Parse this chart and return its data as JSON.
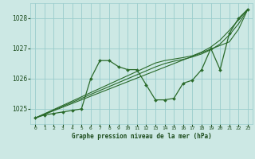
{
  "xlabel": "Graphe pression niveau de la mer (hPa)",
  "ylabel": "",
  "bg_color": "#cce8e4",
  "grid_color": "#99cccc",
  "line_color": "#2a6a2a",
  "text_color": "#1a4a1a",
  "hours": [
    0,
    1,
    2,
    3,
    4,
    5,
    6,
    7,
    8,
    9,
    10,
    11,
    12,
    13,
    14,
    15,
    16,
    17,
    18,
    19,
    20,
    21,
    22,
    23
  ],
  "pressure_main": [
    1024.7,
    1024.8,
    1024.85,
    1024.9,
    1024.95,
    1025.0,
    1026.0,
    1026.6,
    1026.6,
    1026.4,
    1026.3,
    1026.3,
    1025.8,
    1025.3,
    1025.3,
    1025.35,
    1025.85,
    1025.95,
    1026.3,
    1027.0,
    1026.3,
    1027.5,
    1028.0,
    1028.3
  ],
  "trend1": [
    1024.7,
    1024.82,
    1024.94,
    1025.06,
    1025.18,
    1025.3,
    1025.42,
    1025.54,
    1025.66,
    1025.78,
    1025.9,
    1026.02,
    1026.14,
    1026.26,
    1026.38,
    1026.5,
    1026.62,
    1026.74,
    1026.86,
    1026.98,
    1027.1,
    1027.22,
    1027.64,
    1028.3
  ],
  "trend2": [
    1024.7,
    1024.83,
    1024.96,
    1025.09,
    1025.22,
    1025.35,
    1025.48,
    1025.61,
    1025.74,
    1025.87,
    1026.0,
    1026.13,
    1026.26,
    1026.39,
    1026.5,
    1026.58,
    1026.64,
    1026.72,
    1026.82,
    1026.96,
    1027.15,
    1027.45,
    1027.82,
    1028.3
  ],
  "trend3": [
    1024.7,
    1024.84,
    1024.98,
    1025.12,
    1025.26,
    1025.4,
    1025.54,
    1025.68,
    1025.82,
    1025.96,
    1026.1,
    1026.24,
    1026.38,
    1026.52,
    1026.6,
    1026.65,
    1026.7,
    1026.76,
    1026.88,
    1027.05,
    1027.28,
    1027.6,
    1027.95,
    1028.3
  ],
  "ylim": [
    1024.5,
    1028.5
  ],
  "xlim": [
    -0.5,
    23.5
  ]
}
